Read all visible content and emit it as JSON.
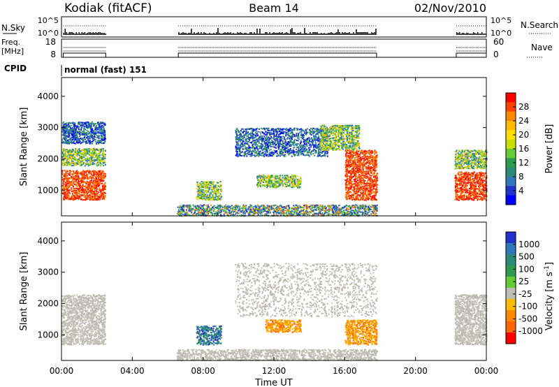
{
  "header": {
    "station": "Kodiak (fitACF)",
    "beam": "Beam 14",
    "date": "02/Nov/2010"
  },
  "nsky_panel": {
    "left_label": "N.Sky",
    "left_ticks": [
      "10^5",
      "10^0"
    ],
    "right_ticks": [
      "10^5",
      "10^0"
    ],
    "right_label": "N.Search"
  },
  "freq_panel": {
    "left_label_1": "Freq.",
    "left_label_2": "[MHz]",
    "left_ticks": [
      "18",
      "8"
    ],
    "right_ticks": [
      "60",
      "0"
    ],
    "right_label": "Nave"
  },
  "cpid": {
    "label": "CPID",
    "value": "normal (fast) 151"
  },
  "colors": {
    "background": "#ffffff",
    "ground_scatter": "#bebeb4",
    "axis": "#000000"
  },
  "chart_data": [
    {
      "type": "heatmap",
      "name": "power",
      "ylabel": "Slant Range [km]",
      "yticks": [
        1000,
        2000,
        3000,
        4000
      ],
      "ylim": [
        180,
        4600
      ],
      "xlim": [
        0,
        24
      ],
      "colorbar": {
        "label": "Power [dB]",
        "ticks": [
          "28",
          "24",
          "20",
          "16",
          "12",
          "8",
          "4"
        ],
        "colors": [
          "#ff0000",
          "#ff4400",
          "#ff8800",
          "#ffbb00",
          "#ffe000",
          "#c8e000",
          "#66cc33",
          "#2e9b4e",
          "#2c8a78",
          "#3377bb",
          "#2233cc",
          "#0000ff"
        ]
      },
      "regions": [
        {
          "t": [
            0.0,
            2.45
          ],
          "r": [
            700,
            1650
          ],
          "level": "high"
        },
        {
          "t": [
            0.0,
            2.45
          ],
          "r": [
            1800,
            2350
          ],
          "level": "mid"
        },
        {
          "t": [
            0.0,
            2.45
          ],
          "r": [
            2500,
            3200
          ],
          "level": "low"
        },
        {
          "t": [
            7.6,
            9.0
          ],
          "r": [
            700,
            1300
          ],
          "level": "mid"
        },
        {
          "t": [
            9.8,
            15.0
          ],
          "r": [
            2100,
            3000
          ],
          "level": "low"
        },
        {
          "t": [
            14.6,
            16.8
          ],
          "r": [
            2300,
            3100
          ],
          "level": "mid"
        },
        {
          "t": [
            11.0,
            13.5
          ],
          "r": [
            1100,
            1500
          ],
          "level": "mid"
        },
        {
          "t": [
            16.0,
            17.8
          ],
          "r": [
            700,
            2300
          ],
          "level": "high"
        },
        {
          "t": [
            22.2,
            24.0
          ],
          "r": [
            700,
            1600
          ],
          "level": "high"
        },
        {
          "t": [
            22.2,
            24.0
          ],
          "r": [
            1700,
            2300
          ],
          "level": "mid"
        },
        {
          "t": [
            6.5,
            17.8
          ],
          "r": [
            200,
            550
          ],
          "level": "noise"
        }
      ]
    },
    {
      "type": "heatmap",
      "name": "velocity",
      "xlabel": "Time UT",
      "ylabel": "Slant Range [km]",
      "yticks": [
        1000,
        2000,
        3000,
        4000
      ],
      "xticks": [
        "00:00",
        "04:00",
        "08:00",
        "12:00",
        "16:00",
        "20:00",
        "00:00"
      ],
      "ylim": [
        180,
        4600
      ],
      "xlim": [
        0,
        24
      ],
      "colorbar": {
        "label": "Velocity [m s^-1]",
        "label_main": "Velocity",
        "label_unit": "[m s",
        "label_exp": "-1",
        "label_close": "]",
        "ticks": [
          "1000",
          "500",
          "100",
          "25",
          "-25",
          "-100",
          "-500",
          "-1000"
        ],
        "colors": [
          "#2233cc",
          "#3377bb",
          "#2c8a78",
          "#2e9b4e",
          "#66cc33",
          "#bebeb4",
          "#ffbb00",
          "#ff8800",
          "#ff6600",
          "#ff0000"
        ]
      },
      "regions": [
        {
          "t": [
            0.0,
            2.45
          ],
          "r": [
            700,
            2300
          ],
          "level": "gs"
        },
        {
          "t": [
            7.6,
            9.0
          ],
          "r": [
            700,
            1300
          ],
          "level": "pos"
        },
        {
          "t": [
            9.8,
            17.8
          ],
          "r": [
            1600,
            3300
          ],
          "level": "gs"
        },
        {
          "t": [
            11.5,
            13.5
          ],
          "r": [
            1100,
            1500
          ],
          "level": "neg"
        },
        {
          "t": [
            16.0,
            17.8
          ],
          "r": [
            700,
            1500
          ],
          "level": "neg"
        },
        {
          "t": [
            22.2,
            24.0
          ],
          "r": [
            700,
            2300
          ],
          "level": "gs"
        },
        {
          "t": [
            6.5,
            17.8
          ],
          "r": [
            200,
            550
          ],
          "level": "gs"
        }
      ]
    }
  ]
}
